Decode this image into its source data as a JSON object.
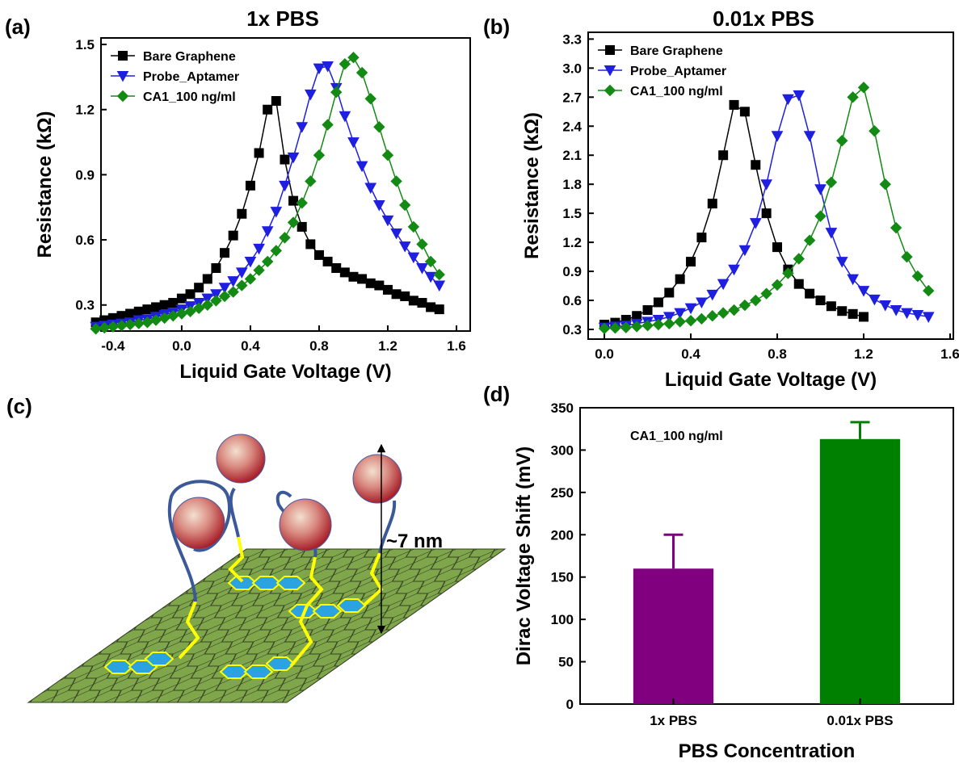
{
  "chart_data": [
    {
      "type": "line",
      "label": "(a)",
      "title": "1x PBS",
      "xlabel": "Liquid Gate Voltage (V)",
      "ylabel": "Resistance (kΩ)",
      "x": [
        -0.5,
        -0.45,
        -0.4,
        -0.35,
        -0.3,
        -0.25,
        -0.2,
        -0.15,
        -0.1,
        -0.05,
        0,
        0.05,
        0.1,
        0.15,
        0.2,
        0.25,
        0.3,
        0.35,
        0.4,
        0.45,
        0.5,
        0.55,
        0.6,
        0.65,
        0.7,
        0.75,
        0.8,
        0.85,
        0.9,
        0.95,
        1,
        1.05,
        1.1,
        1.15,
        1.2,
        1.25,
        1.3,
        1.35,
        1.4,
        1.45,
        1.5
      ],
      "series": [
        {
          "name": "Bare Graphene",
          "color": "#000000",
          "values": [
            0.22,
            0.23,
            0.24,
            0.25,
            0.26,
            0.27,
            0.28,
            0.29,
            0.3,
            0.31,
            0.33,
            0.35,
            0.38,
            0.42,
            0.47,
            0.54,
            0.62,
            0.72,
            0.85,
            1.0,
            1.2,
            1.24,
            0.97,
            0.78,
            0.66,
            0.58,
            0.53,
            0.5,
            0.47,
            0.45,
            0.43,
            0.42,
            0.4,
            0.39,
            0.37,
            0.35,
            0.34,
            0.32,
            0.31,
            0.29,
            0.28
          ]
        },
        {
          "name": "Probe_Aptamer",
          "color": "#1f1fe0",
          "values": [
            0.2,
            0.205,
            0.21,
            0.215,
            0.22,
            0.23,
            0.235,
            0.245,
            0.255,
            0.265,
            0.28,
            0.295,
            0.31,
            0.33,
            0.35,
            0.38,
            0.41,
            0.45,
            0.5,
            0.56,
            0.64,
            0.73,
            0.85,
            0.98,
            1.12,
            1.27,
            1.39,
            1.4,
            1.3,
            1.17,
            1.05,
            0.94,
            0.84,
            0.76,
            0.69,
            0.63,
            0.57,
            0.52,
            0.47,
            0.43,
            0.39
          ]
        },
        {
          "name": "CA1_100 ng/ml",
          "color": "#138a13",
          "values": [
            0.19,
            0.195,
            0.2,
            0.205,
            0.21,
            0.215,
            0.22,
            0.23,
            0.24,
            0.25,
            0.26,
            0.27,
            0.285,
            0.3,
            0.32,
            0.34,
            0.36,
            0.39,
            0.42,
            0.46,
            0.5,
            0.55,
            0.61,
            0.68,
            0.77,
            0.87,
            0.99,
            1.13,
            1.28,
            1.41,
            1.44,
            1.37,
            1.25,
            1.12,
            0.99,
            0.87,
            0.76,
            0.66,
            0.58,
            0.5,
            0.44
          ]
        }
      ],
      "xlim": [
        -0.47,
        1.68
      ],
      "ylim": [
        0.18,
        1.53
      ],
      "xticks": [
        -0.4,
        {
          "value": 0,
          "label": "0.0"
        },
        0.4,
        0.8,
        1.2,
        1.6
      ],
      "yticks": [
        0.3,
        0.6,
        0.9,
        1.2,
        1.5
      ],
      "legend": "upper left"
    },
    {
      "type": "line",
      "label": "(b)",
      "title": "0.01x PBS",
      "xlabel": "Liquid Gate Voltage (V)",
      "ylabel": "Resistance (kΩ)",
      "x": [
        0,
        0.05,
        0.1,
        0.15,
        0.2,
        0.25,
        0.3,
        0.35,
        0.4,
        0.45,
        0.5,
        0.55,
        0.6,
        0.65,
        0.7,
        0.75,
        0.8,
        0.85,
        0.9,
        0.95,
        1,
        1.05,
        1.1,
        1.15,
        1.2,
        1.25,
        1.3,
        1.35,
        1.4,
        1.45,
        1.5
      ],
      "series": [
        {
          "name": "Bare Graphene",
          "color": "#000000",
          "values": [
            0.35,
            0.37,
            0.4,
            0.44,
            0.5,
            0.58,
            0.68,
            0.82,
            1.0,
            1.25,
            1.6,
            2.1,
            2.62,
            2.55,
            2.0,
            1.5,
            1.15,
            0.92,
            0.77,
            0.67,
            0.6,
            0.54,
            0.49,
            0.46,
            0.43,
            null,
            null,
            null,
            null,
            null,
            null
          ]
        },
        {
          "name": "Probe_Aptamer",
          "color": "#1f1fe0",
          "values": [
            0.32,
            0.33,
            0.34,
            0.36,
            0.38,
            0.4,
            0.43,
            0.47,
            0.52,
            0.58,
            0.66,
            0.77,
            0.92,
            1.12,
            1.4,
            1.8,
            2.3,
            2.68,
            2.72,
            2.3,
            1.75,
            1.3,
            1.0,
            0.82,
            0.7,
            0.61,
            0.55,
            0.5,
            0.47,
            0.45,
            0.43
          ]
        },
        {
          "name": "CA1_100 ng/ml",
          "color": "#138a13",
          "values": [
            0.31,
            0.315,
            0.32,
            0.33,
            0.34,
            0.35,
            0.36,
            0.38,
            0.39,
            0.41,
            0.44,
            0.47,
            0.5,
            0.55,
            0.6,
            0.67,
            0.76,
            0.88,
            1.03,
            1.22,
            1.47,
            1.82,
            2.25,
            2.7,
            2.8,
            2.35,
            1.8,
            1.35,
            1.05,
            0.85,
            0.7
          ]
        }
      ],
      "xlim": [
        -0.075,
        1.615
      ],
      "ylim": [
        0.2,
        3.37
      ],
      "xticks": [
        {
          "value": 0,
          "label": "0.0"
        },
        0.4,
        0.8,
        1.2,
        1.6
      ],
      "yticks": [
        0.3,
        0.6,
        0.9,
        1.2,
        1.5,
        1.8,
        2.1,
        2.4,
        2.7,
        {
          "value": 3,
          "label": "3.0"
        },
        3.3
      ],
      "legend": "upper left"
    },
    {
      "type": "bar",
      "label": "(d)",
      "annotation": "CA1_100 ng/ml",
      "xlabel": "PBS Concentration",
      "ylabel": "Dirac Voltage Shift (mV)",
      "categories": [
        "1x PBS",
        "0.01x PBS"
      ],
      "values": [
        160,
        313
      ],
      "errors": [
        40,
        20
      ],
      "colors": [
        "#800080",
        "#008000"
      ],
      "ylim": [
        0,
        350
      ],
      "yticks": [
        0,
        50,
        100,
        150,
        200,
        250,
        300,
        350
      ]
    }
  ],
  "illustration": {
    "label": "(c)",
    "annotation": "~7 nm"
  }
}
